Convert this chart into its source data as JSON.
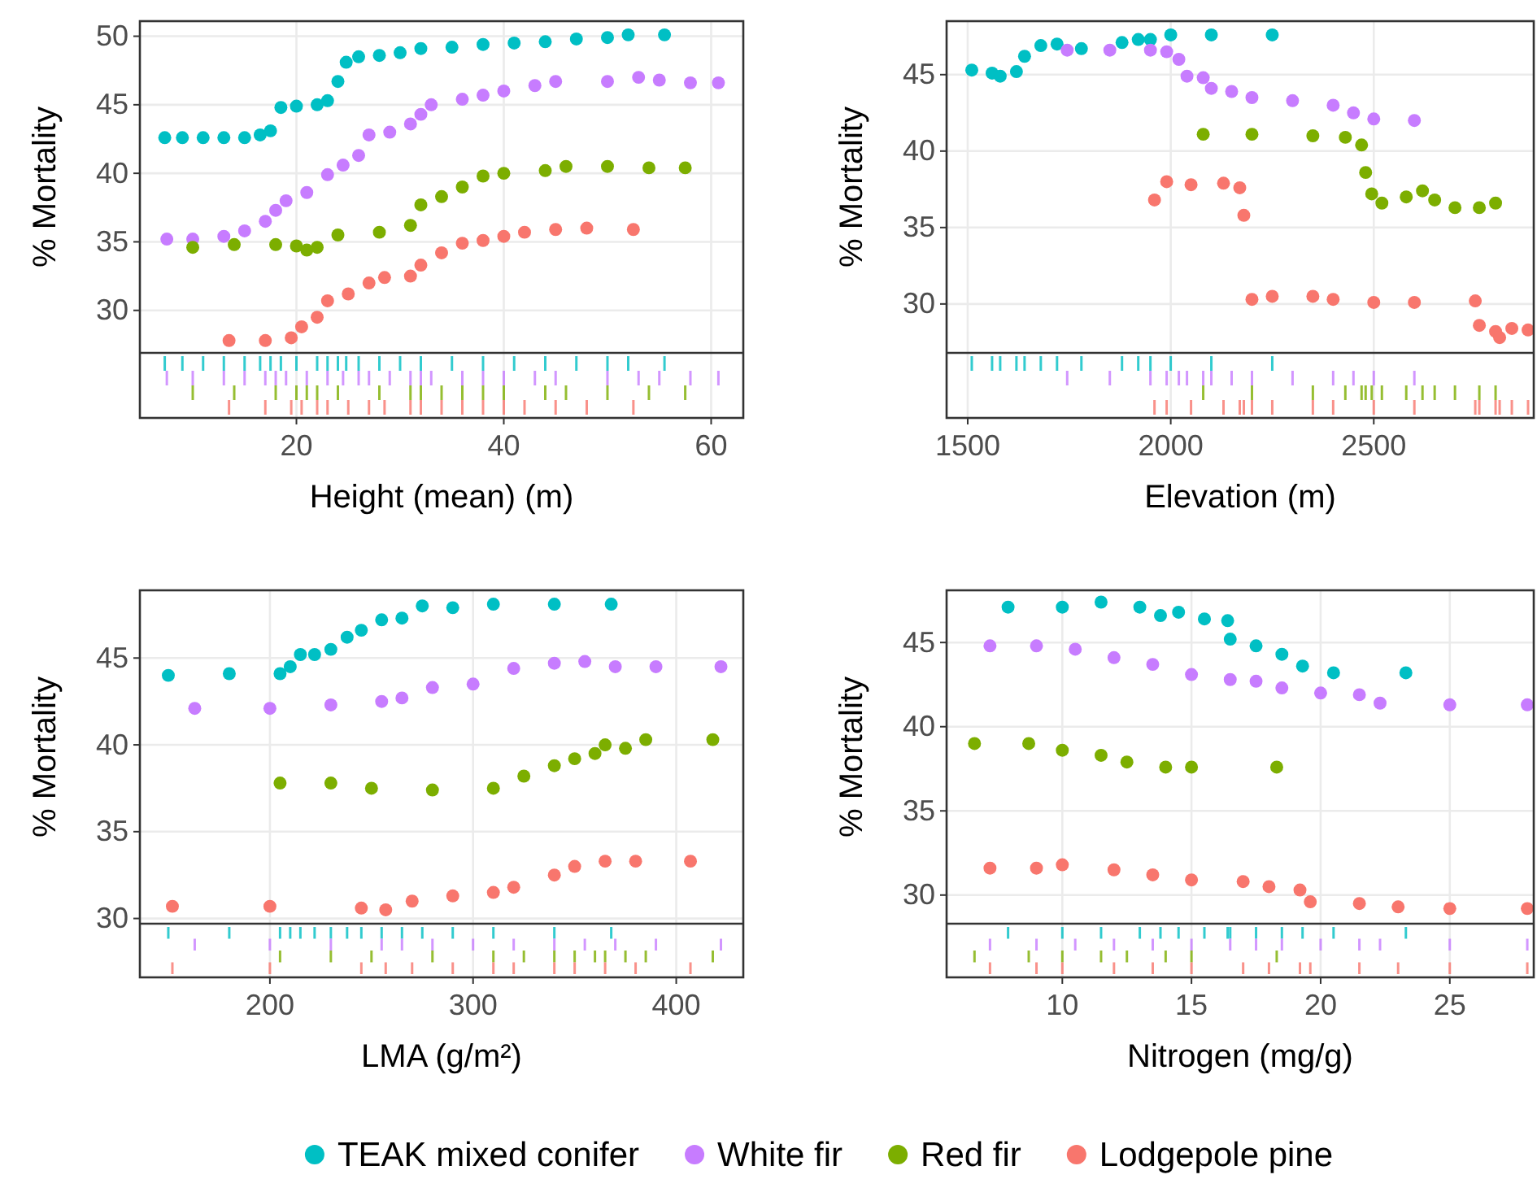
{
  "chart_data": [
    {
      "type": "scatter",
      "xlabel": "Height (mean) (m)",
      "ylabel": "% Mortality",
      "xlim": [
        4.9,
        63.1
      ],
      "ylim": [
        26.9,
        51.1
      ],
      "xticks": [
        20,
        40,
        60
      ],
      "yticks": [
        30,
        35,
        40,
        45,
        50
      ],
      "grid": true,
      "marker": "circle",
      "legend": "bottom",
      "series": [
        {
          "name": "TEAK mixed conifer",
          "color": "#00bfc4",
          "x": [
            7.3,
            9,
            11,
            13,
            15,
            16.5,
            17.5,
            18.5,
            20,
            22,
            23,
            24,
            24.8,
            26,
            28,
            30,
            32,
            35,
            38,
            41,
            44,
            47,
            50,
            52,
            55.5
          ],
          "values": [
            42.6,
            42.6,
            42.6,
            42.6,
            42.6,
            42.8,
            43.1,
            44.8,
            44.9,
            45.0,
            45.3,
            46.7,
            48.1,
            48.5,
            48.6,
            48.8,
            49.1,
            49.2,
            49.4,
            49.5,
            49.6,
            49.8,
            49.9,
            50.1,
            50.1
          ]
        },
        {
          "name": "White fir",
          "color": "#c77cff",
          "x": [
            7.5,
            10,
            13,
            15,
            17,
            18,
            19,
            21,
            23,
            24.5,
            26,
            27,
            29,
            31,
            32,
            33,
            36,
            38,
            40,
            43,
            45,
            50,
            53,
            55,
            58,
            60.7
          ],
          "values": [
            35.2,
            35.2,
            35.4,
            35.8,
            36.5,
            37.3,
            38.0,
            38.6,
            39.9,
            40.6,
            41.3,
            42.8,
            43.0,
            43.6,
            44.3,
            45.0,
            45.4,
            45.7,
            46.0,
            46.4,
            46.7,
            46.7,
            47.0,
            46.8,
            46.6,
            46.6
          ]
        },
        {
          "name": "Red fir",
          "color": "#7cae00",
          "x": [
            10,
            14,
            18,
            20,
            21,
            22,
            24,
            28,
            31,
            32,
            34,
            36,
            38,
            40,
            44,
            46,
            50,
            54,
            57.5
          ],
          "values": [
            34.6,
            34.8,
            34.8,
            34.7,
            34.4,
            34.6,
            35.5,
            35.7,
            36.2,
            37.7,
            38.3,
            39.0,
            39.8,
            40.0,
            40.2,
            40.5,
            40.5,
            40.4,
            40.4
          ]
        },
        {
          "name": "Lodgepole pine",
          "color": "#f8766d",
          "x": [
            13.5,
            17,
            19.5,
            20.5,
            22,
            23,
            25,
            27,
            28.5,
            31,
            32,
            34,
            36,
            38,
            40,
            42,
            45,
            48,
            52.5
          ],
          "values": [
            27.8,
            27.8,
            28.0,
            28.8,
            29.5,
            30.7,
            31.2,
            32.0,
            32.4,
            32.5,
            33.3,
            34.2,
            34.9,
            35.1,
            35.4,
            35.7,
            35.9,
            36.0,
            35.9
          ]
        }
      ]
    },
    {
      "type": "scatter",
      "xlabel": "Elevation (m)",
      "ylabel": "% Mortality",
      "xlim": [
        1448,
        2894
      ],
      "ylim": [
        26.8,
        48.5
      ],
      "xticks": [
        1500,
        2000,
        2500
      ],
      "yticks": [
        30,
        35,
        40,
        45
      ],
      "grid": true,
      "marker": "circle",
      "series": [
        {
          "color": "#00bfc4",
          "x": [
            1510,
            1560,
            1580,
            1620,
            1640,
            1680,
            1720,
            1780,
            1880,
            1920,
            1950,
            2000,
            2100,
            2250
          ],
          "values": [
            45.3,
            45.1,
            44.9,
            45.2,
            46.2,
            46.9,
            47.0,
            46.7,
            47.1,
            47.3,
            47.3,
            47.6,
            47.6,
            47.6
          ]
        },
        {
          "color": "#c77cff",
          "x": [
            1745,
            1850,
            1950,
            1990,
            2020,
            2040,
            2080,
            2100,
            2150,
            2200,
            2300,
            2400,
            2450,
            2500,
            2600
          ],
          "values": [
            46.6,
            46.6,
            46.6,
            46.5,
            46.0,
            44.9,
            44.8,
            44.1,
            43.9,
            43.5,
            43.3,
            43.0,
            42.5,
            42.1,
            42.0
          ]
        },
        {
          "color": "#7cae00",
          "x": [
            2080,
            2200,
            2350,
            2430,
            2470,
            2480,
            2495,
            2520,
            2580,
            2620,
            2650,
            2700,
            2760,
            2800
          ],
          "values": [
            41.1,
            41.1,
            41.0,
            40.9,
            40.4,
            38.6,
            37.2,
            36.6,
            37.0,
            37.4,
            36.8,
            36.3,
            36.3,
            36.6
          ]
        },
        {
          "color": "#f8766d",
          "x": [
            1960,
            1990,
            2050,
            2130,
            2170,
            2180,
            2200,
            2250,
            2350,
            2400,
            2500,
            2600,
            2750,
            2760,
            2800,
            2810,
            2840,
            2880
          ],
          "values": [
            36.8,
            38.0,
            37.8,
            37.9,
            37.6,
            35.8,
            30.3,
            30.5,
            30.5,
            30.3,
            30.1,
            30.1,
            30.2,
            28.6,
            28.2,
            27.8,
            28.4,
            28.3
          ]
        }
      ]
    },
    {
      "type": "scatter",
      "xlabel": "LMA (g/m²)",
      "ylabel": "% Mortality",
      "xlim": [
        136,
        433
      ],
      "ylim": [
        29.7,
        48.9
      ],
      "xticks": [
        200,
        300,
        400
      ],
      "yticks": [
        30,
        35,
        40,
        45
      ],
      "grid": true,
      "marker": "circle",
      "series": [
        {
          "color": "#00bfc4",
          "x": [
            150,
            180,
            205,
            210,
            215,
            222,
            230,
            238,
            245,
            255,
            265,
            275,
            290,
            310,
            340,
            368
          ],
          "values": [
            44.0,
            44.1,
            44.1,
            44.5,
            45.2,
            45.2,
            45.5,
            46.2,
            46.6,
            47.2,
            47.3,
            48.0,
            47.9,
            48.1,
            48.1,
            48.1
          ]
        },
        {
          "color": "#c77cff",
          "x": [
            163,
            200,
            230,
            255,
            265,
            280,
            300,
            320,
            340,
            355,
            370,
            390,
            422
          ],
          "values": [
            42.1,
            42.1,
            42.3,
            42.5,
            42.7,
            43.3,
            43.5,
            44.4,
            44.7,
            44.8,
            44.5,
            44.5,
            44.5
          ]
        },
        {
          "color": "#7cae00",
          "x": [
            205,
            230,
            250,
            280,
            310,
            325,
            340,
            350,
            360,
            365,
            375,
            385,
            418
          ],
          "values": [
            37.8,
            37.8,
            37.5,
            37.4,
            37.5,
            38.2,
            38.8,
            39.2,
            39.5,
            40.0,
            39.8,
            40.3,
            40.3
          ]
        },
        {
          "color": "#f8766d",
          "x": [
            152,
            200,
            245,
            257,
            270,
            290,
            310,
            320,
            340,
            350,
            365,
            380,
            407
          ],
          "values": [
            30.7,
            30.7,
            30.6,
            30.5,
            31.0,
            31.3,
            31.5,
            31.8,
            32.5,
            33.0,
            33.3,
            33.3,
            33.3
          ]
        }
      ]
    },
    {
      "type": "scatter",
      "xlabel": "Nitrogen (mg/g)",
      "ylabel": "% Mortality",
      "xlim": [
        5.52,
        28.25
      ],
      "ylim": [
        28.3,
        48.1
      ],
      "xticks": [
        10,
        15,
        20,
        25
      ],
      "yticks": [
        30,
        35,
        40,
        45
      ],
      "grid": true,
      "marker": "circle",
      "series": [
        {
          "color": "#00bfc4",
          "x": [
            7.9,
            10,
            11.5,
            13,
            13.8,
            14.5,
            15.5,
            16.4,
            16.5,
            17.5,
            18.5,
            19.3,
            20.5,
            23.3
          ],
          "values": [
            47.1,
            47.1,
            47.4,
            47.1,
            46.6,
            46.8,
            46.4,
            46.3,
            45.2,
            44.8,
            44.3,
            43.6,
            43.2,
            43.2
          ]
        },
        {
          "color": "#c77cff",
          "x": [
            7.2,
            9,
            10.5,
            12,
            13.5,
            15,
            16.5,
            17.5,
            18.5,
            20,
            21.5,
            22.3,
            25,
            28
          ],
          "values": [
            44.8,
            44.8,
            44.6,
            44.1,
            43.7,
            43.1,
            42.8,
            42.7,
            42.3,
            42.0,
            41.9,
            41.4,
            41.3,
            41.3
          ]
        },
        {
          "color": "#7cae00",
          "x": [
            6.6,
            8.7,
            10,
            11.5,
            12.5,
            14,
            15,
            18.3
          ],
          "values": [
            39.0,
            39.0,
            38.6,
            38.3,
            37.9,
            37.6,
            37.6,
            37.6
          ]
        },
        {
          "color": "#f8766d",
          "x": [
            7.2,
            9,
            10,
            12,
            13.5,
            15,
            17,
            18,
            19.2,
            19.6,
            21.5,
            23,
            25,
            28
          ],
          "values": [
            31.6,
            31.6,
            31.8,
            31.5,
            31.2,
            30.9,
            30.8,
            30.5,
            30.3,
            29.6,
            29.5,
            29.3,
            29.2,
            29.2
          ]
        }
      ]
    }
  ]
}
